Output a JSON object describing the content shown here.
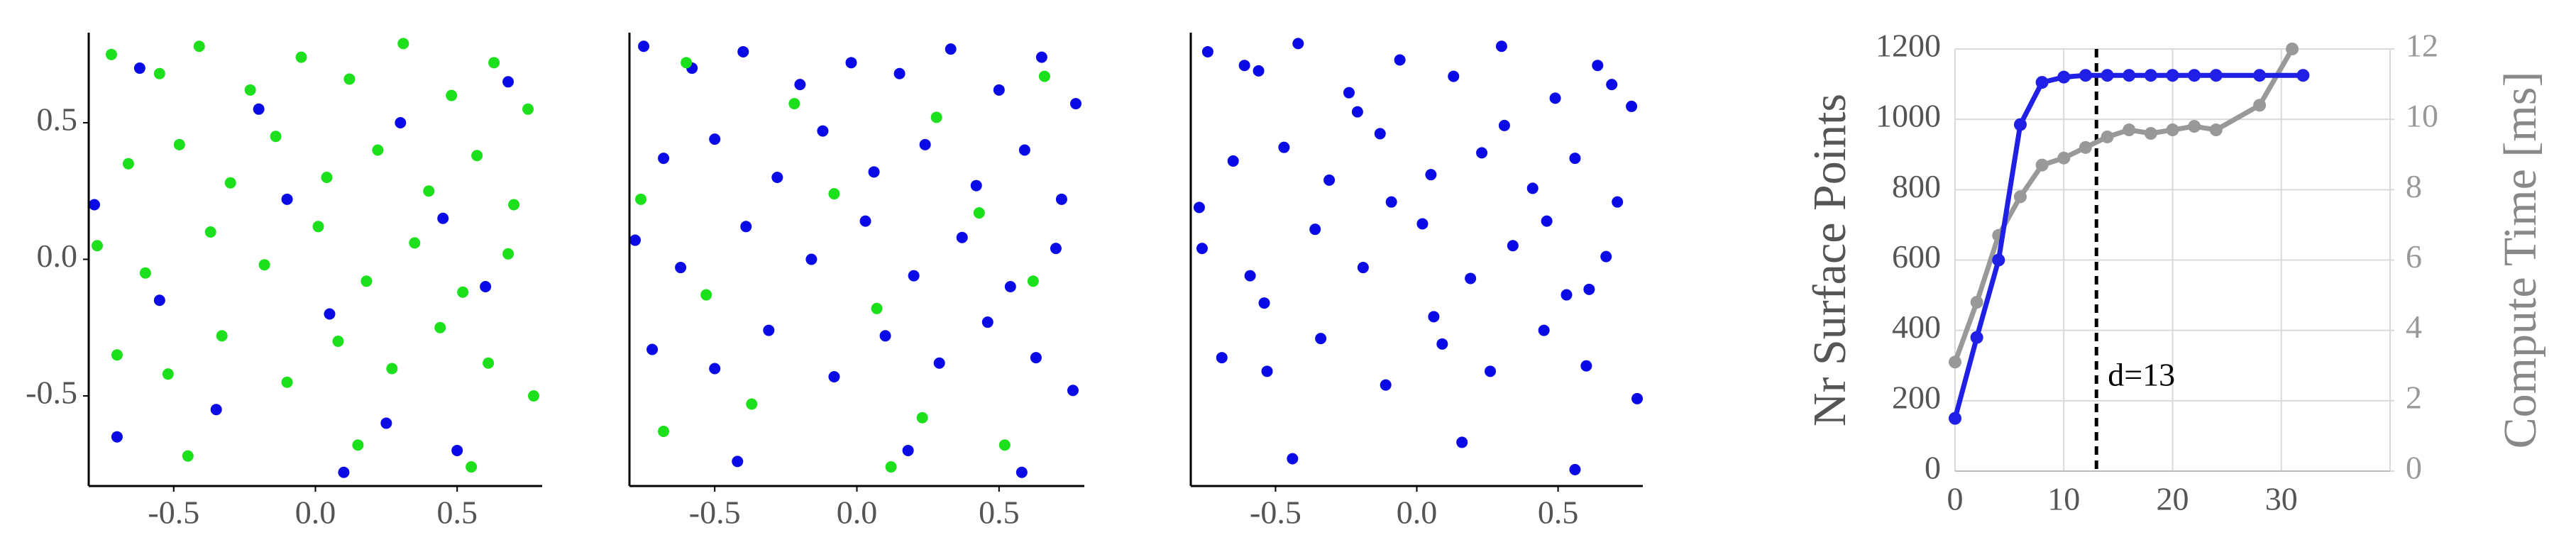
{
  "chart_data": [
    {
      "type": "scatter",
      "xlim": [
        -0.8,
        0.8
      ],
      "ylim": [
        -0.83,
        0.83
      ],
      "xticks": [
        -0.5,
        {
          "value": 0,
          "label": "0.0"
        },
        0.5
      ],
      "yticks": [
        0.5,
        {
          "value": 0,
          "label": "0.0"
        },
        -0.5
      ],
      "series": [
        {
          "color": "#1de01d",
          "x": [
            -0.72,
            -0.55,
            -0.41,
            -0.23,
            -0.05,
            0.12,
            0.31,
            0.48,
            0.63,
            0.75,
            -0.66,
            -0.48,
            -0.3,
            -0.14,
            0.04,
            0.22,
            0.4,
            0.57,
            0.7,
            -0.77,
            -0.6,
            -0.37,
            -0.18,
            0.01,
            0.18,
            0.35,
            0.52,
            0.68,
            -0.7,
            -0.52,
            -0.33,
            -0.1,
            0.08,
            0.27,
            0.44,
            0.61,
            0.77,
            -0.45,
            0.15,
            0.55
          ],
          "values": [
            0.75,
            0.68,
            0.78,
            0.62,
            0.74,
            0.66,
            0.79,
            0.6,
            0.72,
            0.55,
            0.35,
            0.42,
            0.28,
            0.45,
            0.3,
            0.4,
            0.25,
            0.38,
            0.2,
            0.05,
            -0.05,
            0.1,
            -0.02,
            0.12,
            -0.08,
            0.06,
            -0.12,
            0.02,
            -0.35,
            -0.42,
            -0.28,
            -0.45,
            -0.3,
            -0.4,
            -0.25,
            -0.38,
            -0.5,
            -0.72,
            -0.68,
            -0.76
          ]
        },
        {
          "color": "#0a0ae6",
          "x": [
            -0.62,
            -0.2,
            0.3,
            0.68,
            -0.78,
            -0.1,
            0.45,
            -0.55,
            0.05,
            0.6,
            -0.35,
            0.25,
            -0.7,
            0.1,
            0.5
          ],
          "values": [
            0.7,
            0.55,
            0.5,
            0.65,
            0.2,
            0.22,
            0.15,
            -0.15,
            -0.2,
            -0.1,
            -0.55,
            -0.6,
            -0.65,
            -0.78,
            -0.7
          ]
        }
      ]
    },
    {
      "type": "scatter",
      "xlim": [
        -0.8,
        0.8
      ],
      "ylim": [
        -0.83,
        0.83
      ],
      "xticks": [
        -0.5,
        {
          "value": 0,
          "label": "0.0"
        },
        0.5
      ],
      "yticks": [],
      "series": [
        {
          "color": "#0a0ae6",
          "x": [
            -0.75,
            -0.58,
            -0.4,
            -0.2,
            -0.02,
            0.15,
            0.33,
            0.5,
            0.65,
            0.77,
            -0.68,
            -0.5,
            -0.28,
            -0.12,
            0.06,
            0.24,
            0.42,
            0.59,
            0.72,
            -0.78,
            -0.62,
            -0.39,
            -0.16,
            0.03,
            0.2,
            0.37,
            0.54,
            0.7,
            -0.72,
            -0.5,
            -0.31,
            -0.08,
            0.1,
            0.29,
            0.46,
            0.63,
            0.76,
            -0.42,
            0.18,
            0.58
          ],
          "values": [
            0.78,
            0.7,
            0.76,
            0.64,
            0.72,
            0.68,
            0.77,
            0.62,
            0.74,
            0.57,
            0.37,
            0.44,
            0.3,
            0.47,
            0.32,
            0.42,
            0.27,
            0.4,
            0.22,
            0.07,
            -0.03,
            0.12,
            0.0,
            0.14,
            -0.06,
            0.08,
            -0.1,
            0.04,
            -0.33,
            -0.4,
            -0.26,
            -0.43,
            -0.28,
            -0.38,
            -0.23,
            -0.36,
            -0.48,
            -0.74,
            -0.7,
            -0.78
          ]
        },
        {
          "color": "#1de01d",
          "x": [
            -0.6,
            -0.22,
            0.28,
            0.66,
            -0.76,
            -0.08,
            0.43,
            -0.53,
            0.07,
            0.62,
            -0.37,
            0.23,
            -0.68,
            0.12,
            0.52
          ],
          "values": [
            0.72,
            0.57,
            0.52,
            0.67,
            0.22,
            0.24,
            0.17,
            -0.13,
            -0.18,
            -0.08,
            -0.53,
            -0.58,
            -0.63,
            -0.76,
            -0.68
          ]
        }
      ]
    },
    {
      "type": "scatter",
      "xlim": [
        -0.8,
        0.8
      ],
      "ylim": [
        -0.83,
        0.83
      ],
      "xticks": [
        -0.5,
        {
          "value": 0,
          "label": "0.0"
        },
        0.5
      ],
      "yticks": [],
      "series": [
        {
          "color": "#0a0ae6",
          "x": [
            -0.74,
            -0.56,
            -0.42,
            -0.24,
            -0.06,
            0.13,
            0.3,
            0.49,
            0.64,
            0.76,
            -0.65,
            -0.47,
            -0.31,
            -0.13,
            0.05,
            0.23,
            0.41,
            0.56,
            0.71,
            -0.76,
            -0.59,
            -0.36,
            -0.19,
            0.02,
            0.19,
            0.34,
            0.53,
            0.67,
            -0.69,
            -0.53,
            -0.34,
            -0.11,
            0.09,
            0.26,
            0.45,
            0.6,
            0.78,
            -0.44,
            0.16,
            0.56,
            -0.61,
            -0.21,
            0.31,
            0.69,
            -0.77,
            -0.09,
            0.46,
            -0.54,
            0.06,
            0.61
          ],
          "values": [
            0.76,
            0.69,
            0.79,
            0.61,
            0.73,
            0.67,
            0.78,
            0.59,
            0.71,
            0.56,
            0.36,
            0.41,
            0.29,
            0.46,
            0.31,
            0.39,
            0.26,
            0.37,
            0.21,
            0.04,
            -0.06,
            0.11,
            -0.03,
            0.13,
            -0.07,
            0.05,
            -0.13,
            0.01,
            -0.36,
            -0.41,
            -0.29,
            -0.46,
            -0.31,
            -0.41,
            -0.26,
            -0.39,
            -0.51,
            -0.73,
            -0.67,
            -0.77,
            0.71,
            0.54,
            0.49,
            0.64,
            0.19,
            0.21,
            0.14,
            -0.16,
            -0.21,
            -0.11
          ]
        }
      ]
    },
    {
      "type": "line",
      "xlim": [
        0,
        40
      ],
      "ylim": [
        0,
        1200
      ],
      "y2lim": [
        0,
        12
      ],
      "xticks": [
        0,
        10,
        20,
        30
      ],
      "yticks": [
        0,
        200,
        400,
        600,
        800,
        1000,
        1200
      ],
      "y2ticks": [
        0,
        2,
        4,
        6,
        8,
        10,
        12
      ],
      "ylabel": "Nr Surface Points",
      "y2label": "Compute Time [ms]",
      "grid": true,
      "annotation": {
        "text": "d=13",
        "x": 13
      },
      "series": [
        {
          "color": "#1f1fe6",
          "x": [
            0,
            2,
            4,
            6,
            8,
            10,
            12,
            14,
            16,
            18,
            20,
            22,
            24,
            28,
            32
          ],
          "values": [
            150,
            380,
            600,
            985,
            1105,
            1120,
            1125,
            1125,
            1125,
            1125,
            1125,
            1125,
            1125,
            1125,
            1125
          ]
        },
        {
          "color": "#999999",
          "axis": "y2",
          "x": [
            0,
            2,
            4,
            6,
            8,
            10,
            12,
            14,
            16,
            18,
            20,
            22,
            24,
            28,
            31
          ],
          "values": [
            3.1,
            4.8,
            6.7,
            7.8,
            8.7,
            8.9,
            9.2,
            9.5,
            9.7,
            9.6,
            9.7,
            9.8,
            9.7,
            10.4,
            12
          ]
        }
      ]
    }
  ]
}
